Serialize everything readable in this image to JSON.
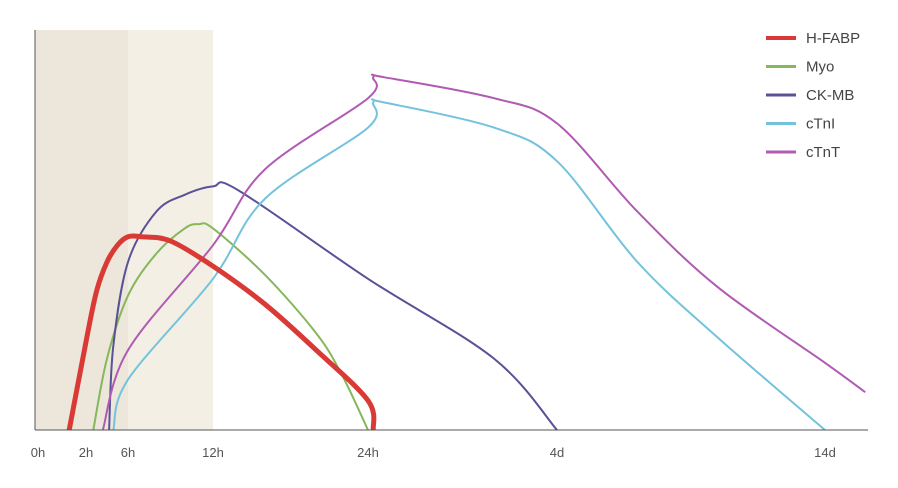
{
  "chart_data": {
    "type": "line",
    "title": "",
    "xlabel": "",
    "ylabel": "",
    "grid": false,
    "legend_position": "top-right",
    "x_ticks": [
      "0h",
      "2h",
      "6h",
      "12h",
      "24h",
      "4d",
      "14d"
    ],
    "shaded_regions": [
      {
        "from": "0h",
        "to": "6h",
        "color": "#ece7da"
      },
      {
        "from": "6h",
        "to": "12h",
        "color": "#f3efe4"
      }
    ],
    "series": [
      {
        "name": "H-FABP",
        "color": "#d93a36",
        "width": 5,
        "points": [
          [
            "1.3h",
            0
          ],
          [
            "2h",
            0.21
          ],
          [
            "3h",
            0.33
          ],
          [
            "4h",
            0.4
          ],
          [
            "5h",
            0.44
          ],
          [
            "6h",
            0.46
          ],
          [
            "7h",
            0.46
          ],
          [
            "9h",
            0.45
          ],
          [
            "12h",
            0.39
          ],
          [
            "16h",
            0.3
          ],
          [
            "20h",
            0.19
          ],
          [
            "24h",
            0.07
          ],
          [
            "26h",
            0
          ]
        ]
      },
      {
        "name": "Myo",
        "color": "#84b85a",
        "width": 2,
        "points": [
          [
            "2.7h",
            0
          ],
          [
            "4h",
            0.17
          ],
          [
            "6h",
            0.32
          ],
          [
            "8h",
            0.42
          ],
          [
            "10h",
            0.48
          ],
          [
            "11h",
            0.49
          ],
          [
            "12h",
            0.48
          ],
          [
            "16h",
            0.37
          ],
          [
            "20h",
            0.23
          ],
          [
            "22h",
            0.13
          ],
          [
            "24h",
            0
          ]
        ]
      },
      {
        "name": "CK-MB",
        "color": "#5a5196",
        "width": 2,
        "points": [
          [
            "4.2h",
            0
          ],
          [
            "4.6h",
            0.2
          ],
          [
            "6h",
            0.4
          ],
          [
            "8h",
            0.52
          ],
          [
            "10h",
            0.56
          ],
          [
            "12h",
            0.58
          ],
          [
            "14h",
            0.57
          ],
          [
            "24h",
            0.36
          ],
          [
            "3d",
            0.17
          ],
          [
            "4d",
            0
          ]
        ]
      },
      {
        "name": "cTnI",
        "color": "#73c3dc",
        "width": 2,
        "points": [
          [
            "4.6h",
            0
          ],
          [
            "6h",
            0.12
          ],
          [
            "12h",
            0.36
          ],
          [
            "16h",
            0.55
          ],
          [
            "24h",
            0.72
          ],
          [
            "26h",
            0.78
          ],
          [
            "30h",
            0.78
          ],
          [
            "3d",
            0.72
          ],
          [
            "4d",
            0.64
          ],
          [
            "7d",
            0.4
          ],
          [
            "10d",
            0.22
          ],
          [
            "14d",
            0
          ]
        ]
      },
      {
        "name": "cTnT",
        "color": "#b05bb1",
        "width": 2,
        "points": [
          [
            "3.6h",
            0
          ],
          [
            "6h",
            0.19
          ],
          [
            "12h",
            0.44
          ],
          [
            "16h",
            0.62
          ],
          [
            "24h",
            0.79
          ],
          [
            "26h",
            0.84
          ],
          [
            "30h",
            0.84
          ],
          [
            "3d",
            0.79
          ],
          [
            "4d",
            0.73
          ],
          [
            "7d",
            0.52
          ],
          [
            "10d",
            0.34
          ],
          [
            "14d",
            0.16
          ],
          [
            "15.5d",
            0.09
          ]
        ]
      }
    ]
  }
}
